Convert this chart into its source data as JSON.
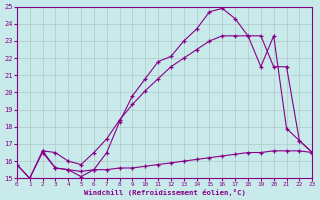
{
  "xlabel": "Windchill (Refroidissement éolien,°C)",
  "bg_color": "#c8eaea",
  "grid_color": "#b0c8c8",
  "line_color": "#880088",
  "xlim": [
    0,
    23
  ],
  "ylim": [
    15,
    25
  ],
  "xticks": [
    0,
    1,
    2,
    3,
    4,
    5,
    6,
    7,
    8,
    9,
    10,
    11,
    12,
    13,
    14,
    15,
    16,
    17,
    18,
    19,
    20,
    21,
    22,
    23
  ],
  "yticks": [
    15,
    16,
    17,
    18,
    19,
    20,
    21,
    22,
    23,
    24,
    25
  ],
  "curve1_x": [
    0,
    1,
    2,
    3,
    4,
    5,
    6,
    7,
    8,
    9,
    10,
    11,
    12,
    13,
    14,
    15,
    16,
    17,
    18,
    19,
    20,
    21,
    22,
    23
  ],
  "curve1_y": [
    15.8,
    15.0,
    16.6,
    15.6,
    15.5,
    15.1,
    15.5,
    16.5,
    18.3,
    19.8,
    20.8,
    21.8,
    22.1,
    23.0,
    23.7,
    24.7,
    24.9,
    24.3,
    23.3,
    21.5,
    23.3,
    17.9,
    17.2,
    16.5
  ],
  "curve2_x": [
    2,
    3,
    4,
    5,
    6,
    7,
    8,
    9,
    10,
    11,
    12,
    13,
    14,
    15,
    16,
    17,
    18,
    19,
    20,
    21,
    22,
    23
  ],
  "curve2_y": [
    16.6,
    16.5,
    16.0,
    15.8,
    16.5,
    17.3,
    18.4,
    19.3,
    20.1,
    20.8,
    21.5,
    22.0,
    22.5,
    23.0,
    23.3,
    23.3,
    23.3,
    23.3,
    21.5,
    21.5,
    17.2,
    16.5
  ],
  "curve3_x": [
    0,
    1,
    2,
    3,
    4,
    5,
    6,
    7,
    8,
    9,
    10,
    11,
    12,
    13,
    14,
    15,
    16,
    17,
    18,
    19,
    20,
    21,
    22,
    23
  ],
  "curve3_y": [
    15.8,
    15.0,
    16.5,
    15.6,
    15.5,
    15.4,
    15.5,
    15.5,
    15.6,
    15.6,
    15.7,
    15.8,
    15.9,
    16.0,
    16.1,
    16.2,
    16.3,
    16.4,
    16.5,
    16.5,
    16.6,
    16.6,
    16.6,
    16.5
  ]
}
